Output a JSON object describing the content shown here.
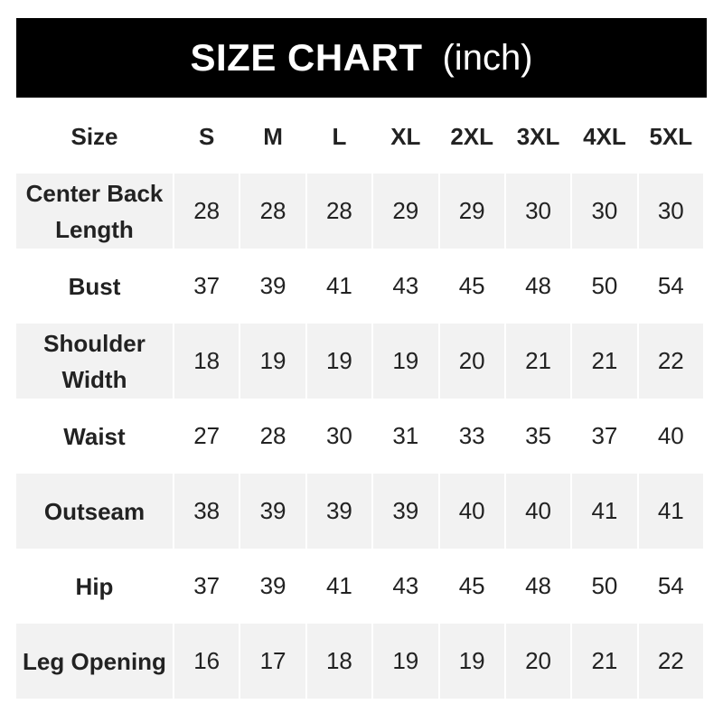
{
  "header": {
    "title": "SIZE CHART",
    "unit": "(inch)"
  },
  "table": {
    "columns": [
      "Size",
      "S",
      "M",
      "L",
      "XL",
      "2XL",
      "3XL",
      "4XL",
      "5XL"
    ],
    "rows": [
      {
        "label": "Center Back Length",
        "values": [
          "28",
          "28",
          "28",
          "29",
          "29",
          "30",
          "30",
          "30"
        ]
      },
      {
        "label": "Bust",
        "values": [
          "37",
          "39",
          "41",
          "43",
          "45",
          "48",
          "50",
          "54"
        ]
      },
      {
        "label": "Shoulder Width",
        "values": [
          "18",
          "19",
          "19",
          "19",
          "20",
          "21",
          "21",
          "22"
        ]
      },
      {
        "label": "Waist",
        "values": [
          "27",
          "28",
          "30",
          "31",
          "33",
          "35",
          "37",
          "40"
        ]
      },
      {
        "label": "Outseam",
        "values": [
          "38",
          "39",
          "39",
          "39",
          "40",
          "40",
          "41",
          "41"
        ]
      },
      {
        "label": "Hip",
        "values": [
          "37",
          "39",
          "41",
          "43",
          "45",
          "48",
          "50",
          "54"
        ]
      },
      {
        "label": "Leg Opening",
        "values": [
          "16",
          "17",
          "18",
          "19",
          "19",
          "20",
          "21",
          "22"
        ]
      }
    ]
  },
  "colors": {
    "header_bg": "#000000",
    "stripe": "#f2f2f2"
  }
}
